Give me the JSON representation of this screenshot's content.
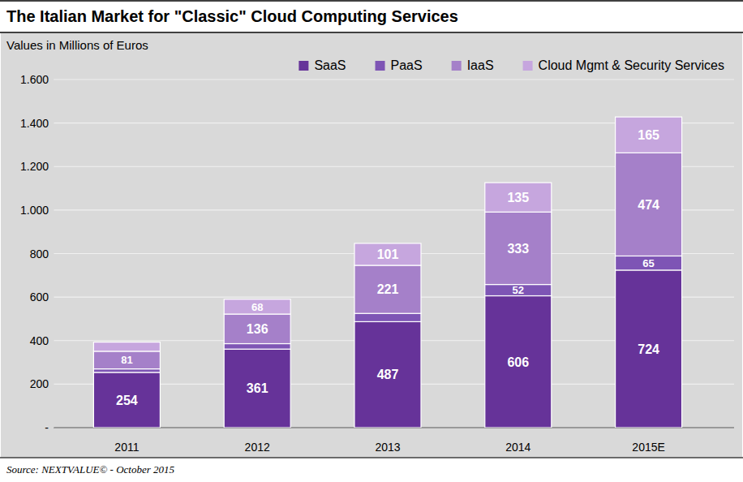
{
  "chart_data": {
    "type": "bar",
    "title": "The Italian Market for \"Classic\" Cloud Computing Services",
    "subtitle": "Values in Millions of Euros",
    "source": "Source: NEXTVALUE© - October 2015",
    "categories": [
      "2011",
      "2012",
      "2013",
      "2014",
      "2015E"
    ],
    "stacked": true,
    "data_labels": true,
    "grid": true,
    "legend": "top-right",
    "ylim": [
      0,
      1600
    ],
    "yticks": [
      {
        "value": 0,
        "label": "-"
      },
      200,
      400,
      600,
      800,
      {
        "value": 1000,
        "label": "1.000"
      },
      {
        "value": 1200,
        "label": "1.200"
      },
      {
        "value": 1400,
        "label": "1.400"
      },
      {
        "value": 1600,
        "label": "1.600"
      }
    ],
    "series": [
      {
        "name": "SaaS",
        "color": "#663399",
        "values": [
          254,
          361,
          487,
          606,
          724
        ]
      },
      {
        "name": "PaaS",
        "color": "#7e55b5",
        "values": [
          16,
          25,
          38,
          52,
          65
        ],
        "value_labels": [
          null,
          null,
          null,
          "52",
          "65"
        ]
      },
      {
        "name": "IaaS",
        "color": "#a580c9",
        "values": [
          81,
          136,
          221,
          333,
          474
        ]
      },
      {
        "name": "Cloud Mgmt & Security Services",
        "color": "#c6a6de",
        "values": [
          42,
          68,
          101,
          135,
          165
        ],
        "value_labels": [
          null,
          "68",
          "101",
          "135",
          "165"
        ]
      }
    ]
  }
}
